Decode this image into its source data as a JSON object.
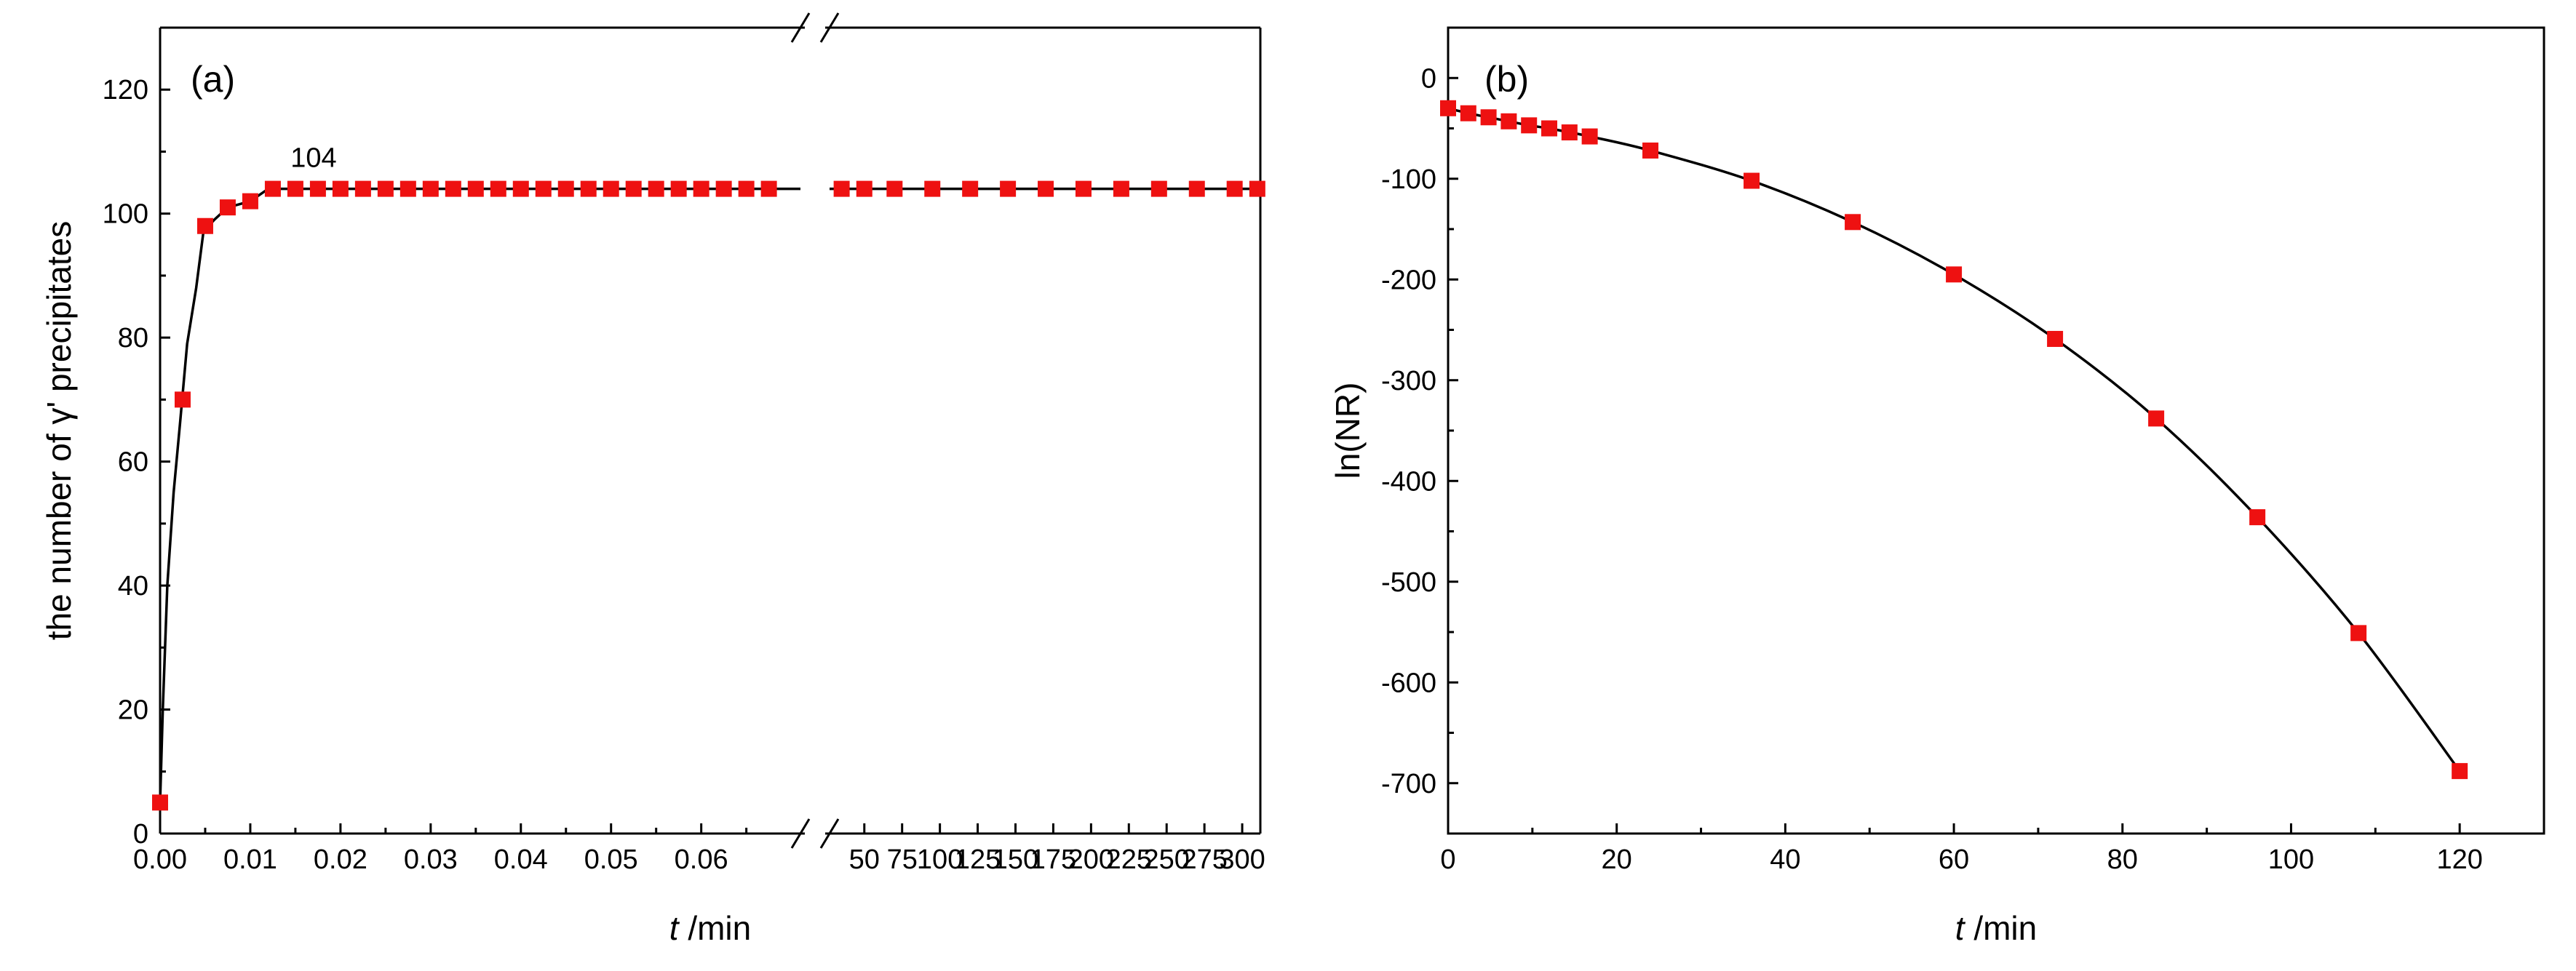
{
  "colors": {
    "marker": "#ee1111",
    "line": "#000000",
    "axis": "#000000"
  },
  "chart_data": [
    {
      "type": "line",
      "panel": "(a)",
      "xlabel_italic": "t",
      "xlabel_unit": " /min",
      "ylabel": "the number of γ' precipitates",
      "ylim": [
        0,
        130
      ],
      "yticks": [
        0,
        20,
        40,
        60,
        80,
        100,
        120
      ],
      "axis_break": true,
      "segment_left": {
        "xlim": [
          0,
          0.071
        ],
        "xticks": [
          0.0,
          0.01,
          0.02,
          0.03,
          0.04,
          0.05,
          0.06
        ],
        "xtick_labels": [
          "0.00",
          "0.01",
          "0.02",
          "0.03",
          "0.04",
          "0.05",
          "0.06"
        ]
      },
      "segment_right": {
        "xlim": [
          27,
          312
        ],
        "xticks": [
          50,
          75,
          100,
          125,
          150,
          175,
          200,
          225,
          250,
          275,
          300
        ],
        "xtick_labels": [
          "50",
          "75",
          "100",
          "125",
          "150",
          "175",
          "200",
          "225",
          "250",
          "275",
          "300"
        ]
      },
      "annotation": {
        "text": "104",
        "x": 0.015,
        "y": 104
      },
      "series": [
        {
          "name": "number of precipitates",
          "points_left": [
            [
              0.0,
              5
            ],
            [
              0.0025,
              70
            ],
            [
              0.005,
              98
            ],
            [
              0.0075,
              101
            ],
            [
              0.01,
              102
            ],
            [
              0.0125,
              104
            ],
            [
              0.015,
              104
            ],
            [
              0.0175,
              104
            ],
            [
              0.02,
              104
            ],
            [
              0.0225,
              104
            ],
            [
              0.025,
              104
            ],
            [
              0.0275,
              104
            ],
            [
              0.03,
              104
            ],
            [
              0.0325,
              104
            ],
            [
              0.035,
              104
            ],
            [
              0.0375,
              104
            ],
            [
              0.04,
              104
            ],
            [
              0.0425,
              104
            ],
            [
              0.045,
              104
            ],
            [
              0.0475,
              104
            ],
            [
              0.05,
              104
            ],
            [
              0.0525,
              104
            ],
            [
              0.055,
              104
            ],
            [
              0.0575,
              104
            ],
            [
              0.06,
              104
            ],
            [
              0.0625,
              104
            ],
            [
              0.065,
              104
            ],
            [
              0.0675,
              104
            ]
          ],
          "points_right": [
            [
              35,
              104
            ],
            [
              50,
              104
            ],
            [
              70,
              104
            ],
            [
              95,
              104
            ],
            [
              120,
              104
            ],
            [
              145,
              104
            ],
            [
              170,
              104
            ],
            [
              195,
              104
            ],
            [
              220,
              104
            ],
            [
              245,
              104
            ],
            [
              270,
              104
            ],
            [
              295,
              104
            ],
            [
              310,
              104
            ]
          ],
          "curve_left": [
            [
              0.0,
              5
            ],
            [
              0.0003,
              20
            ],
            [
              0.0008,
              40
            ],
            [
              0.0015,
              55
            ],
            [
              0.0022,
              66
            ],
            [
              0.003,
              79
            ],
            [
              0.004,
              88
            ],
            [
              0.0048,
              97
            ],
            [
              0.006,
              99
            ],
            [
              0.0075,
              101
            ],
            [
              0.01,
              102
            ],
            [
              0.012,
              104
            ],
            [
              0.071,
              104
            ]
          ]
        }
      ]
    },
    {
      "type": "line",
      "panel": "(b)",
      "xlabel_italic": "t",
      "xlabel_unit": " /min",
      "ylabel": "ln(NR)",
      "xlim": [
        0,
        130
      ],
      "ylim": [
        -750,
        50
      ],
      "xticks": [
        0,
        20,
        40,
        60,
        80,
        100,
        120
      ],
      "xtick_labels": [
        "0",
        "20",
        "40",
        "60",
        "80",
        "100",
        "120"
      ],
      "yticks": [
        0,
        -100,
        -200,
        -300,
        -400,
        -500,
        -600,
        -700
      ],
      "ytick_labels": [
        "0",
        "-100",
        "-200",
        "-300",
        "-400",
        "-500",
        "-600",
        "-700"
      ],
      "series": [
        {
          "name": "ln(NR)",
          "points": [
            [
              0,
              -30
            ],
            [
              2.4,
              -35
            ],
            [
              4.8,
              -39
            ],
            [
              7.2,
              -43
            ],
            [
              9.6,
              -47
            ],
            [
              12,
              -50
            ],
            [
              14.4,
              -54
            ],
            [
              16.8,
              -58
            ],
            [
              24,
              -72
            ],
            [
              36,
              -102
            ],
            [
              48,
              -143
            ],
            [
              60,
              -195
            ],
            [
              72,
              -259
            ],
            [
              84,
              -338
            ],
            [
              96,
              -436
            ],
            [
              108,
              -551
            ],
            [
              120,
              -688
            ]
          ]
        }
      ]
    }
  ]
}
